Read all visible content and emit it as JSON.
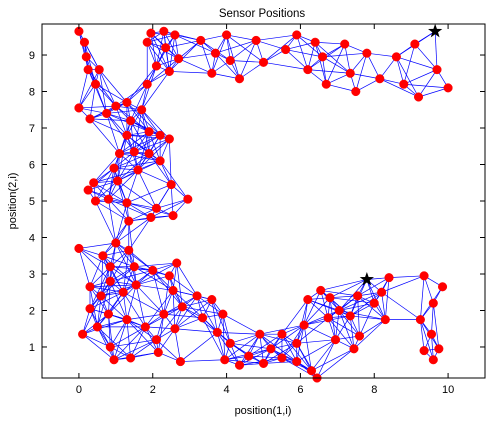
{
  "chart_data": {
    "type": "scatter",
    "title": "Sensor Positions",
    "xlabel": "position(1,i)",
    "ylabel": "position(2,i)",
    "xlim": [
      -1,
      11
    ],
    "ylim": [
      0.15,
      9.85
    ],
    "xticks": [
      "0",
      "2",
      "4",
      "6",
      "8",
      "10"
    ],
    "yticks": [
      "1",
      "2",
      "3",
      "4",
      "5",
      "6",
      "7",
      "8",
      "9"
    ],
    "grid": false,
    "legend": "none",
    "node_color": "#ff0000",
    "edge_color": "#0000ff",
    "anchor_color": "#000000",
    "connection_radius": 1.3,
    "anchors": [
      {
        "x": 9.65,
        "y": 9.65
      },
      {
        "x": 7.8,
        "y": 2.85
      }
    ],
    "points": [
      {
        "x": 0.0,
        "y": 9.65
      },
      {
        "x": 0.15,
        "y": 9.35
      },
      {
        "x": 0.2,
        "y": 8.95
      },
      {
        "x": 0.25,
        "y": 8.6
      },
      {
        "x": 0.55,
        "y": 8.6
      },
      {
        "x": 0.45,
        "y": 8.2
      },
      {
        "x": 0.0,
        "y": 7.55
      },
      {
        "x": 0.3,
        "y": 7.25
      },
      {
        "x": 0.75,
        "y": 7.4
      },
      {
        "x": 1.0,
        "y": 7.6
      },
      {
        "x": 1.3,
        "y": 7.7
      },
      {
        "x": 1.4,
        "y": 7.2
      },
      {
        "x": 1.7,
        "y": 7.5
      },
      {
        "x": 1.3,
        "y": 6.8
      },
      {
        "x": 1.1,
        "y": 6.3
      },
      {
        "x": 1.5,
        "y": 6.35
      },
      {
        "x": 1.9,
        "y": 6.9
      },
      {
        "x": 2.2,
        "y": 6.8
      },
      {
        "x": 2.45,
        "y": 6.7
      },
      {
        "x": 1.9,
        "y": 6.3
      },
      {
        "x": 2.2,
        "y": 6.1
      },
      {
        "x": 1.6,
        "y": 5.85
      },
      {
        "x": 1.05,
        "y": 5.55
      },
      {
        "x": 0.95,
        "y": 5.9
      },
      {
        "x": 0.4,
        "y": 5.5
      },
      {
        "x": 0.25,
        "y": 5.3
      },
      {
        "x": 0.45,
        "y": 5.0
      },
      {
        "x": 0.8,
        "y": 5.05
      },
      {
        "x": 1.3,
        "y": 4.95
      },
      {
        "x": 1.35,
        "y": 4.45
      },
      {
        "x": 1.95,
        "y": 4.55
      },
      {
        "x": 2.1,
        "y": 4.8
      },
      {
        "x": 2.55,
        "y": 4.6
      },
      {
        "x": 2.95,
        "y": 5.05
      },
      {
        "x": 2.5,
        "y": 5.45
      },
      {
        "x": 0.0,
        "y": 3.7
      },
      {
        "x": 0.65,
        "y": 3.5
      },
      {
        "x": 0.85,
        "y": 3.2
      },
      {
        "x": 1.0,
        "y": 3.85
      },
      {
        "x": 1.35,
        "y": 3.65
      },
      {
        "x": 1.5,
        "y": 3.2
      },
      {
        "x": 0.85,
        "y": 2.8
      },
      {
        "x": 1.2,
        "y": 2.5
      },
      {
        "x": 0.6,
        "y": 2.4
      },
      {
        "x": 0.3,
        "y": 2.65
      },
      {
        "x": 1.55,
        "y": 2.7
      },
      {
        "x": 2.0,
        "y": 3.1
      },
      {
        "x": 2.45,
        "y": 2.95
      },
      {
        "x": 2.65,
        "y": 3.3
      },
      {
        "x": 2.55,
        "y": 2.55
      },
      {
        "x": 0.3,
        "y": 2.05
      },
      {
        "x": 0.8,
        "y": 1.9
      },
      {
        "x": 1.3,
        "y": 1.75
      },
      {
        "x": 1.8,
        "y": 1.55
      },
      {
        "x": 2.3,
        "y": 1.9
      },
      {
        "x": 2.8,
        "y": 2.1
      },
      {
        "x": 0.1,
        "y": 1.35
      },
      {
        "x": 0.5,
        "y": 1.55
      },
      {
        "x": 0.85,
        "y": 1.0
      },
      {
        "x": 0.95,
        "y": 0.65
      },
      {
        "x": 1.4,
        "y": 0.7
      },
      {
        "x": 2.1,
        "y": 1.2
      },
      {
        "x": 2.15,
        "y": 0.85
      },
      {
        "x": 2.6,
        "y": 1.5
      },
      {
        "x": 2.75,
        "y": 0.6
      },
      {
        "x": 3.2,
        "y": 2.4
      },
      {
        "x": 3.6,
        "y": 2.3
      },
      {
        "x": 3.35,
        "y": 1.8
      },
      {
        "x": 3.9,
        "y": 1.9
      },
      {
        "x": 3.75,
        "y": 1.4
      },
      {
        "x": 4.1,
        "y": 1.1
      },
      {
        "x": 3.95,
        "y": 0.65
      },
      {
        "x": 4.35,
        "y": 0.5
      },
      {
        "x": 4.6,
        "y": 0.75
      },
      {
        "x": 4.9,
        "y": 1.35
      },
      {
        "x": 5.2,
        "y": 0.95
      },
      {
        "x": 5.0,
        "y": 0.55
      },
      {
        "x": 5.5,
        "y": 0.7
      },
      {
        "x": 5.5,
        "y": 1.35
      },
      {
        "x": 5.9,
        "y": 1.1
      },
      {
        "x": 5.9,
        "y": 0.6
      },
      {
        "x": 6.3,
        "y": 0.35
      },
      {
        "x": 6.45,
        "y": 0.15
      },
      {
        "x": 6.1,
        "y": 1.6
      },
      {
        "x": 6.2,
        "y": 2.3
      },
      {
        "x": 6.55,
        "y": 2.55
      },
      {
        "x": 6.8,
        "y": 2.35
      },
      {
        "x": 6.75,
        "y": 1.8
      },
      {
        "x": 7.05,
        "y": 2.0
      },
      {
        "x": 6.95,
        "y": 1.2
      },
      {
        "x": 7.35,
        "y": 1.85
      },
      {
        "x": 7.55,
        "y": 2.4
      },
      {
        "x": 8.0,
        "y": 2.2
      },
      {
        "x": 8.2,
        "y": 2.5
      },
      {
        "x": 8.3,
        "y": 1.75
      },
      {
        "x": 7.6,
        "y": 1.3
      },
      {
        "x": 7.45,
        "y": 0.95
      },
      {
        "x": 8.4,
        "y": 2.9
      },
      {
        "x": 9.35,
        "y": 2.95
      },
      {
        "x": 9.85,
        "y": 2.65
      },
      {
        "x": 9.6,
        "y": 2.2
      },
      {
        "x": 9.25,
        "y": 1.75
      },
      {
        "x": 9.55,
        "y": 1.35
      },
      {
        "x": 9.75,
        "y": 0.95
      },
      {
        "x": 9.6,
        "y": 0.65
      },
      {
        "x": 9.35,
        "y": 0.9
      },
      {
        "x": 1.85,
        "y": 9.35
      },
      {
        "x": 1.95,
        "y": 9.6
      },
      {
        "x": 2.3,
        "y": 9.65
      },
      {
        "x": 2.6,
        "y": 9.55
      },
      {
        "x": 2.35,
        "y": 9.2
      },
      {
        "x": 2.7,
        "y": 8.9
      },
      {
        "x": 2.45,
        "y": 8.55
      },
      {
        "x": 2.1,
        "y": 8.7
      },
      {
        "x": 1.85,
        "y": 8.2
      },
      {
        "x": 3.3,
        "y": 9.4
      },
      {
        "x": 3.7,
        "y": 9.05
      },
      {
        "x": 4.0,
        "y": 9.55
      },
      {
        "x": 4.1,
        "y": 8.85
      },
      {
        "x": 3.6,
        "y": 8.5
      },
      {
        "x": 4.35,
        "y": 8.35
      },
      {
        "x": 4.8,
        "y": 9.4
      },
      {
        "x": 5.0,
        "y": 8.8
      },
      {
        "x": 5.6,
        "y": 9.15
      },
      {
        "x": 5.9,
        "y": 9.55
      },
      {
        "x": 6.4,
        "y": 9.35
      },
      {
        "x": 6.6,
        "y": 8.95
      },
      {
        "x": 6.2,
        "y": 8.6
      },
      {
        "x": 6.7,
        "y": 8.2
      },
      {
        "x": 7.2,
        "y": 9.3
      },
      {
        "x": 7.35,
        "y": 8.5
      },
      {
        "x": 7.8,
        "y": 9.05
      },
      {
        "x": 7.5,
        "y": 8.0
      },
      {
        "x": 8.15,
        "y": 8.35
      },
      {
        "x": 8.6,
        "y": 8.95
      },
      {
        "x": 9.1,
        "y": 9.3
      },
      {
        "x": 8.8,
        "y": 8.2
      },
      {
        "x": 9.2,
        "y": 7.85
      },
      {
        "x": 9.7,
        "y": 8.6
      },
      {
        "x": 10.0,
        "y": 8.1
      }
    ]
  }
}
